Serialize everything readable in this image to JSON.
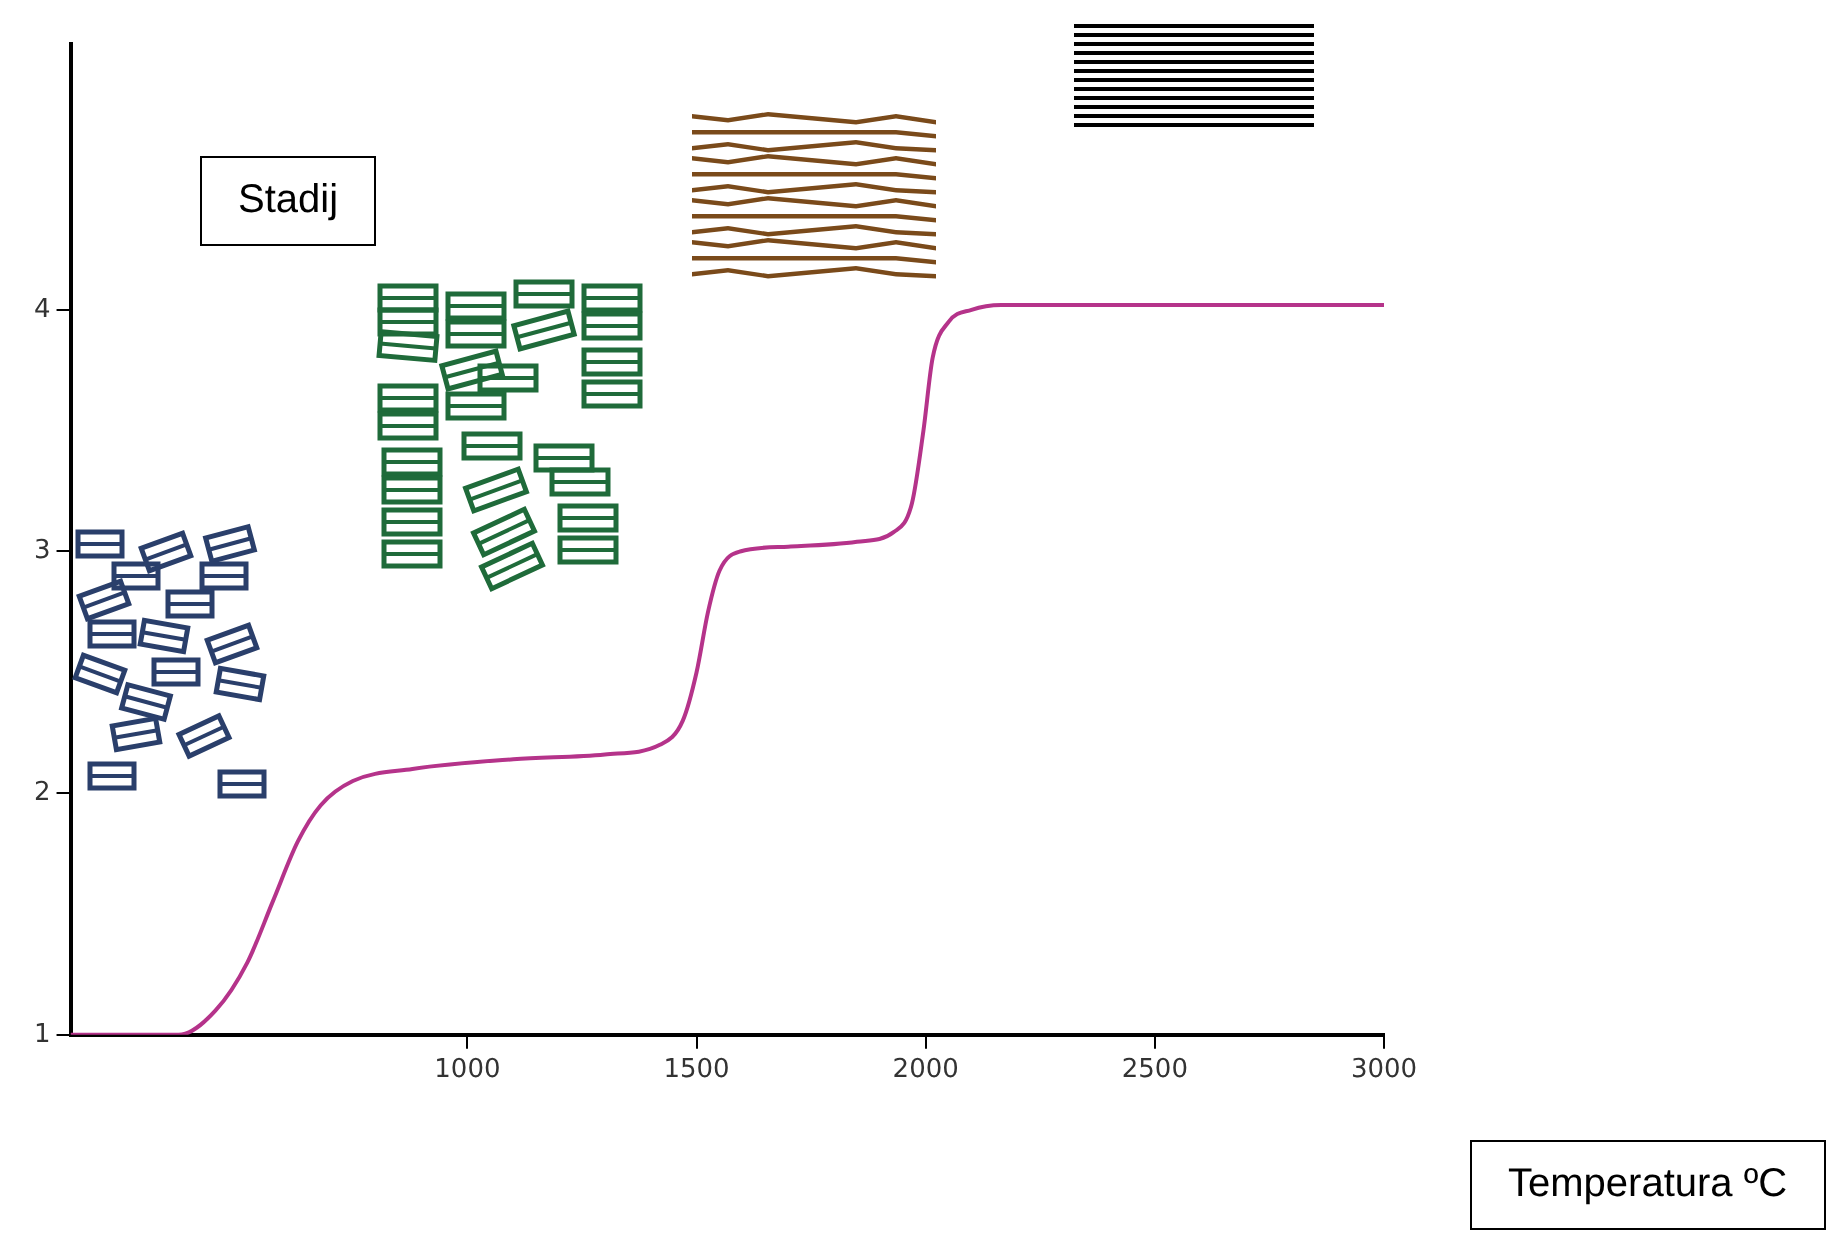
{
  "chart_data": {
    "type": "line",
    "xlabel": "Temperatura ºC",
    "ylabel": "Stadij",
    "x": [
      134,
      370,
      450,
      520,
      575,
      630,
      680,
      750,
      880,
      1100,
      1300,
      1420,
      1470,
      1500,
      1525,
      1550,
      1595,
      1700,
      1850,
      1930,
      1970,
      1995,
      2015,
      2050,
      2100,
      2165,
      3000
    ],
    "series": [
      {
        "color": "#b5338a",
        "values": [
          1,
          1,
          1.1,
          1.3,
          1.55,
          1.8,
          1.95,
          2.05,
          2.1,
          2.14,
          2.16,
          2.2,
          2.3,
          2.5,
          2.75,
          2.92,
          3.0,
          3.02,
          3.04,
          3.08,
          3.2,
          3.5,
          3.8,
          3.95,
          4.0,
          4.02,
          4.02
        ]
      }
    ],
    "xlim": [
      134,
      3000
    ],
    "xticks": [
      1000,
      1500,
      2000,
      2500,
      3000
    ],
    "ylim": [
      1,
      5.1
    ],
    "yticks": [
      1,
      2,
      3,
      4
    ],
    "grid": false,
    "legend": false,
    "marker": "none",
    "line_style": "solid"
  }
}
